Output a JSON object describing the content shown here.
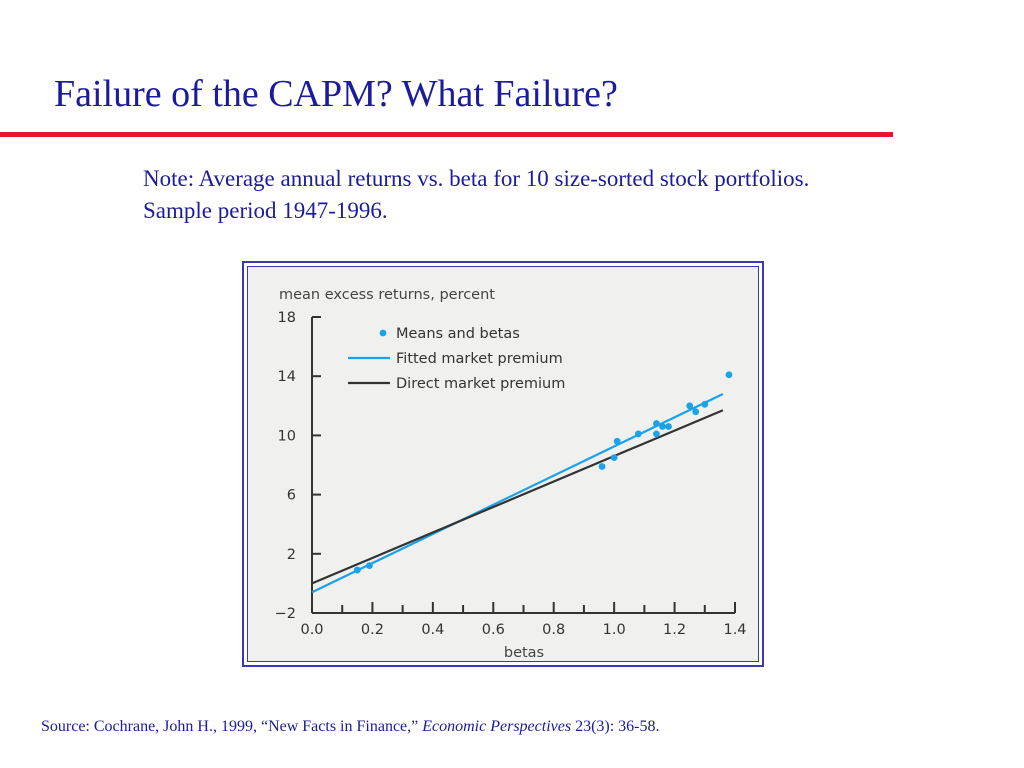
{
  "slide": {
    "title": "Failure of the CAPM?  What Failure?",
    "note_line1": "Note:  Average annual returns vs. beta for 10 size-sorted stock portfolios.",
    "note_line2": "Sample period 1947-1996.",
    "source_prefix": "Source:  Cochrane, John H., 1999, “New Facts in Finance,” ",
    "source_journal": "Economic Perspectives",
    "source_suffix": " 23(3): 36-58."
  },
  "colors": {
    "title_text": "#1b1b9c",
    "title_rule": "#e8132e",
    "means_dots": "#1aa3e8",
    "fitted_line": "#1aa3e8",
    "direct_line": "#333333"
  },
  "chart_data": {
    "type": "scatter",
    "title": "",
    "ylabel": "mean excess returns, percent",
    "xlabel": "betas",
    "xlim": [
      0.0,
      1.4
    ],
    "ylim": [
      -2,
      18
    ],
    "x_ticks": [
      "0.0",
      "0.2",
      "0.4",
      "0.6",
      "0.8",
      "1.0",
      "1.2",
      "1.4"
    ],
    "y_ticks": [
      "18",
      "14",
      "10",
      "6",
      "2",
      "−2"
    ],
    "grid": false,
    "legend_position": "top-left",
    "series": [
      {
        "name": "Means and betas",
        "kind": "scatter",
        "points": [
          [
            0.15,
            0.9
          ],
          [
            0.19,
            1.2
          ],
          [
            0.96,
            7.9
          ],
          [
            1.0,
            8.5
          ],
          [
            1.01,
            9.6
          ],
          [
            1.08,
            10.1
          ],
          [
            1.14,
            10.1
          ],
          [
            1.14,
            10.8
          ],
          [
            1.16,
            10.6
          ],
          [
            1.18,
            10.6
          ],
          [
            1.25,
            12.0
          ],
          [
            1.27,
            11.6
          ],
          [
            1.3,
            12.1
          ],
          [
            1.38,
            14.1
          ]
        ]
      },
      {
        "name": "Fitted market premium",
        "kind": "line",
        "points": [
          [
            0.0,
            -0.6
          ],
          [
            1.36,
            12.8
          ]
        ]
      },
      {
        "name": "Direct market premium",
        "kind": "line",
        "points": [
          [
            0.0,
            0.0
          ],
          [
            1.36,
            11.7
          ]
        ]
      }
    ]
  }
}
